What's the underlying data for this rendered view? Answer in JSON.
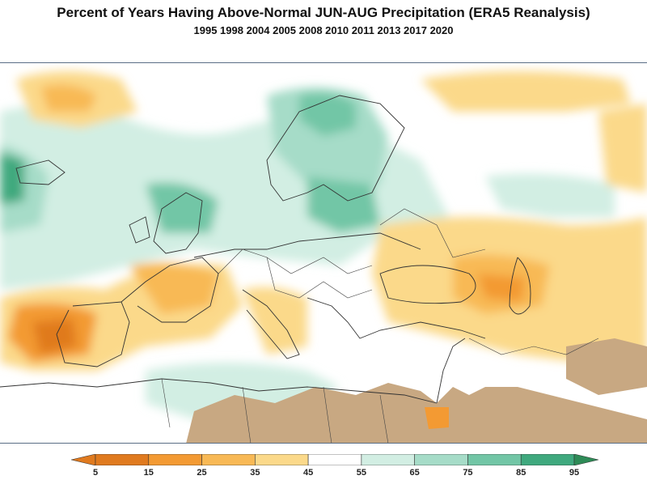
{
  "title": "Percent of Years Having Above-Normal JUN-AUG Precipitation (ERA5 Reanalysis)",
  "subtitle": "1995 1998 2004 2005 2008 2010 2011 2013 2017 2020",
  "colorbar": {
    "ticks": [
      "5",
      "15",
      "25",
      "35",
      "45",
      "55",
      "65",
      "75",
      "85",
      "95"
    ],
    "colors": [
      "#e07a1f",
      "#f39a33",
      "#f8b955",
      "#fbd98a",
      "#ffffff",
      "#d2eee3",
      "#a6dcc8",
      "#72c6a6",
      "#3fa97e"
    ],
    "low_color": "#e07a1f",
    "high_color": "#2e8b57",
    "nodata_color": "#c8a882"
  }
}
